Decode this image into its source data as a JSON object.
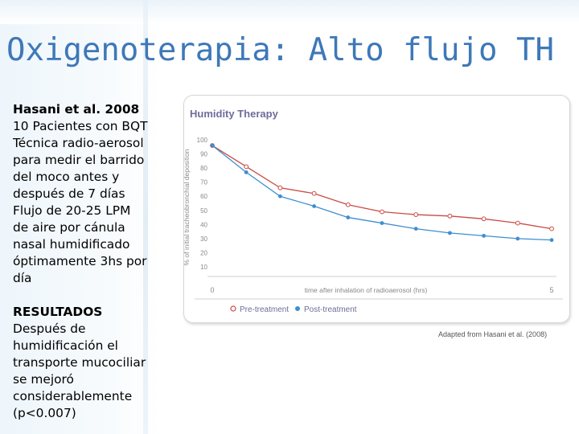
{
  "slide": {
    "title": "Oxigenoterapia: Alto flujo TH"
  },
  "textbox": {
    "heading": "Hasani et al. 2008",
    "lines": [
      "10 Pacientes con BQT",
      "Técnica radio-aerosol",
      "para medir el barrido",
      "del moco antes y",
      "después de 7 días",
      "Flujo  de 20-25 LPM",
      "de aire por cánula",
      "nasal humidificado",
      "óptimamente 3hs por",
      "día"
    ],
    "results_heading": "RESULTADOS",
    "results_lines": [
      "Después de",
      "humidificación el",
      "transporte mucociliar",
      "se mejoró",
      "considerablemente",
      "(p<0.007)"
    ]
  },
  "caption": "Adapted from Hasani et al. (2008)",
  "colors": {
    "title": "#3e78b8",
    "pre": "#c94b45",
    "post": "#3e8ed0",
    "axis_text": "#888888"
  },
  "chart_data": {
    "type": "line",
    "title": "Humidity Therapy",
    "xlabel": "time after inhalation of radioaerosol (hrs)",
    "ylabel": "% of initial tracheobronchial deposition",
    "xticks": [
      "0",
      "5"
    ],
    "xlim": [
      0,
      5
    ],
    "yticks": [
      "10",
      "20",
      "30",
      "40",
      "50",
      "60",
      "70",
      "80",
      "90",
      "100"
    ],
    "ylim": [
      10,
      100
    ],
    "grid": false,
    "legend_position": "bottom",
    "x": [
      0,
      0.5,
      1,
      1.5,
      2,
      2.5,
      3,
      3.5,
      4,
      4.5,
      5
    ],
    "series": [
      {
        "name": "Pre-treatment",
        "marker": "open-circle",
        "color": "#c94b45",
        "values": [
          96,
          81,
          66,
          62,
          54,
          49,
          47,
          46,
          44,
          41,
          37
        ]
      },
      {
        "name": "Post-treatment",
        "marker": "filled-circle",
        "color": "#3e8ed0",
        "values": [
          96,
          77,
          60,
          53,
          45,
          41,
          37,
          34,
          32,
          30,
          29
        ]
      }
    ]
  }
}
